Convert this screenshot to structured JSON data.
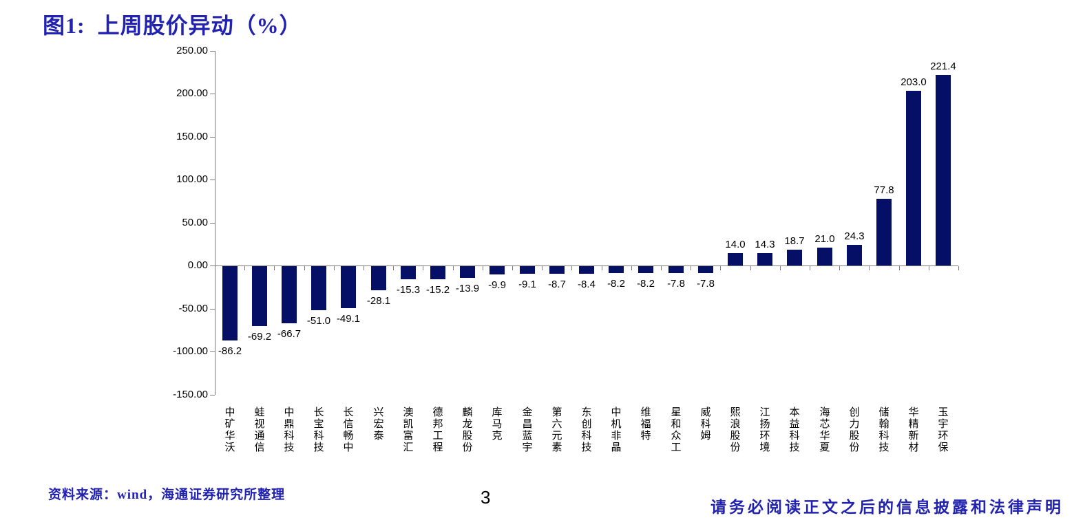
{
  "colors": {
    "accent": "#2222b0",
    "bar": "#050f66",
    "axis": "#7a7a7a",
    "text": "#000000"
  },
  "chart_data": {
    "type": "bar",
    "title": "图1:  上周股价异动（%）",
    "xlabel": "",
    "ylabel": "",
    "categories": [
      "中矿华沃",
      "蛙视通信",
      "中鼎科技",
      "长宝科技",
      "长信畅中",
      "兴宏泰",
      "澳凯富汇",
      "德邦工程",
      "麟龙股份",
      "库马克",
      "金昌蓝宇",
      "第六元素",
      "东创科技",
      "中机非晶",
      "维福特",
      "星和众工",
      "威科姆",
      "熙浪股份",
      "江扬环境",
      "本益科技",
      "海芯华夏",
      "创力股份",
      "储翰科技",
      "华精新材",
      "玉宇环保"
    ],
    "values": [
      -86.2,
      -69.2,
      -66.7,
      -51.0,
      -49.1,
      -28.1,
      -15.3,
      -15.2,
      -13.9,
      -9.9,
      -9.1,
      -8.7,
      -8.4,
      -8.2,
      -8.2,
      -7.8,
      -7.8,
      14.0,
      14.3,
      18.7,
      21.0,
      24.3,
      77.8,
      203.0,
      221.4
    ],
    "value_labels": [
      "-86.2",
      "-69.2",
      "-66.7",
      "-51.0",
      "-49.1",
      "-28.1",
      "-15.3",
      "-15.2",
      "-13.9",
      "-9.9",
      "-9.1",
      "-8.7",
      "-8.4",
      "-8.2",
      "-8.2",
      "-7.8",
      "-7.8",
      "14.0",
      "14.3",
      "18.7",
      "21.0",
      "24.3",
      "77.8",
      "203.0",
      "221.4"
    ],
    "yticks": [
      "250.00",
      "200.00",
      "150.00",
      "100.00",
      "50.00",
      "0.00",
      "-50.00",
      "-100.00",
      "-150.00"
    ],
    "ylim": [
      -150,
      250
    ],
    "ytick_step": 50,
    "grid": false,
    "legend": "none",
    "bar_color": "#050f66"
  },
  "footer": {
    "source": "资料来源：wind，海通证券研究所整理",
    "page_number": "3",
    "disclaimer": "请务必阅读正文之后的信息披露和法律声明"
  }
}
